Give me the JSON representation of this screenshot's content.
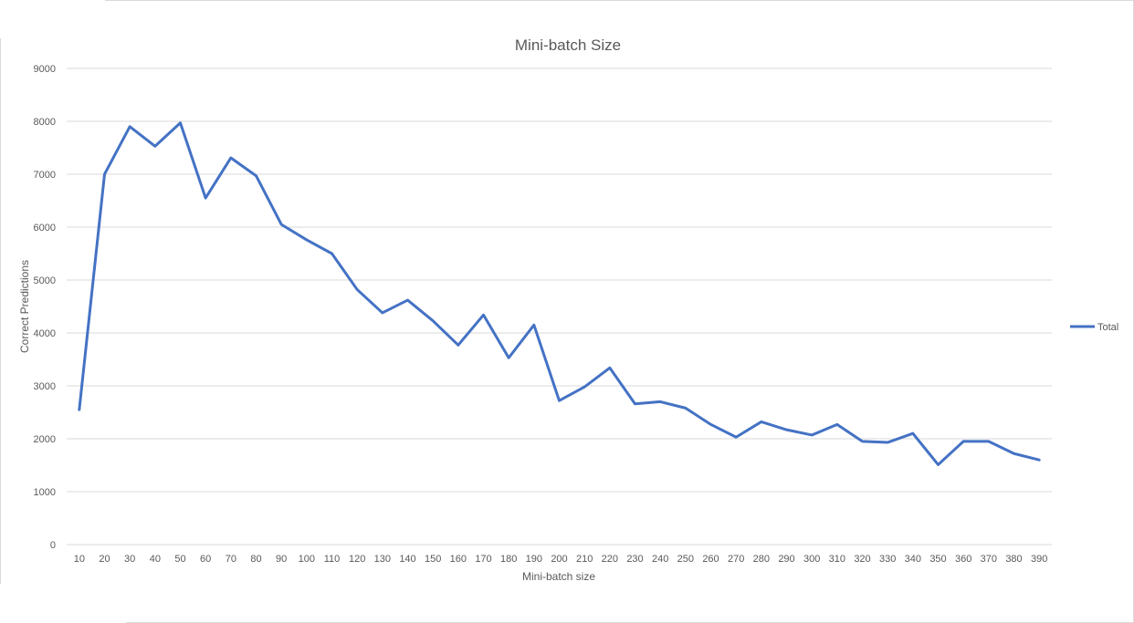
{
  "chart_data": {
    "type": "line",
    "title": "Mini-batch Size",
    "xlabel": "Mini-batch size",
    "ylabel": "Correct Predictions",
    "ylim": [
      0,
      9000
    ],
    "yticks": [
      0,
      1000,
      2000,
      3000,
      4000,
      5000,
      6000,
      7000,
      8000,
      9000
    ],
    "grid": true,
    "legend_position": "right",
    "categories": [
      "10",
      "20",
      "30",
      "40",
      "50",
      "60",
      "70",
      "80",
      "90",
      "100",
      "110",
      "120",
      "130",
      "140",
      "150",
      "160",
      "170",
      "180",
      "190",
      "200",
      "210",
      "220",
      "230",
      "240",
      "250",
      "260",
      "270",
      "280",
      "290",
      "300",
      "310",
      "320",
      "330",
      "340",
      "350",
      "360",
      "370",
      "380",
      "390"
    ],
    "series": [
      {
        "name": "Total",
        "color": "#4472c4",
        "values": [
          2550,
          7000,
          7900,
          7530,
          7970,
          6550,
          7310,
          6970,
          6050,
          5760,
          5500,
          4820,
          4380,
          4620,
          4230,
          3770,
          4340,
          3530,
          4150,
          2720,
          2980,
          3340,
          2660,
          2700,
          2580,
          2270,
          2030,
          2320,
          2170,
          2070,
          2270,
          1950,
          1930,
          2100,
          1510,
          1950,
          1950,
          1720,
          1600
        ]
      }
    ]
  }
}
